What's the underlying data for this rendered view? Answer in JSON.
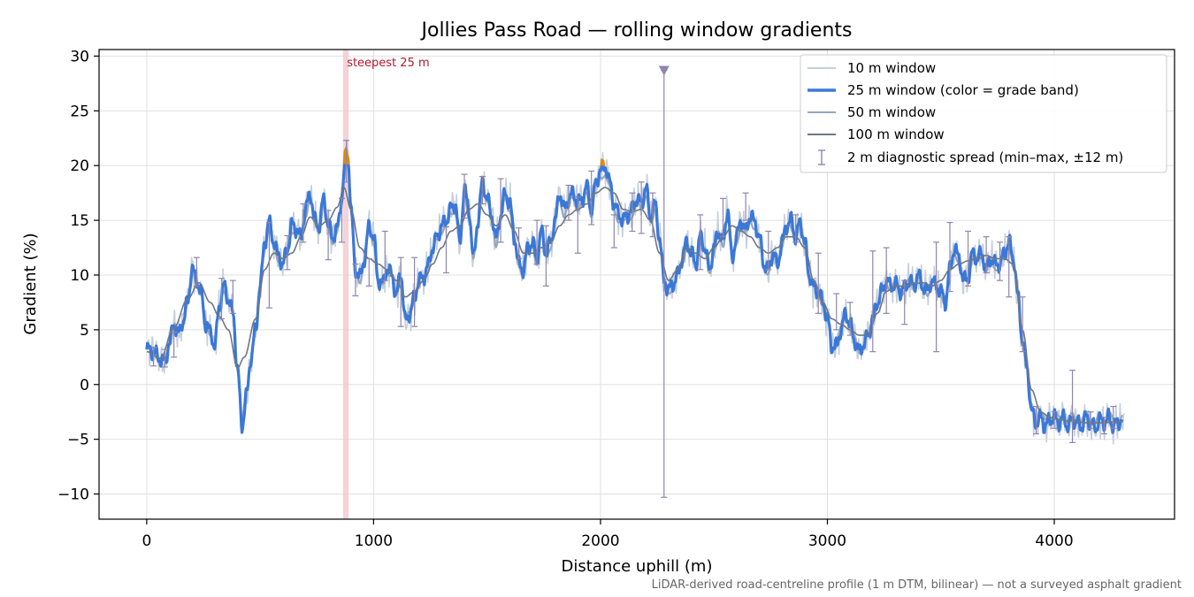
{
  "chart_data": {
    "type": "line",
    "title": "Jollies Pass Road — rolling window gradients",
    "xlabel": "Distance uphill (m)",
    "ylabel": "Gradient (%)",
    "xlim": [
      -210,
      4530
    ],
    "ylim": [
      -12.3,
      30.6
    ],
    "xticks": [
      0,
      1000,
      2000,
      3000,
      4000
    ],
    "yticks": [
      -10,
      -5,
      0,
      5,
      10,
      15,
      20,
      25,
      30
    ],
    "xtick_labels": [
      "0",
      "1000",
      "2000",
      "3000",
      "4000"
    ],
    "ytick_labels": [
      "−10",
      "−5",
      "0",
      "5",
      "10",
      "15",
      "20",
      "25",
      "30"
    ],
    "grid": true,
    "legend_position": "top-right",
    "footnote": "LiDAR-derived road-centreline profile (1 m DTM, bilinear) — not a surveyed asphalt gradient",
    "annotation": {
      "text": "steepest 25 m",
      "x_start": 865,
      "x_end": 890
    },
    "grade_band_threshold": 20,
    "colors": {
      "w10": "#c5cfdc",
      "w25": "#3a78d8",
      "w25_steep": "#e08a0a",
      "w50": "#97a7ba",
      "w100": "#6e7784",
      "spread": "#8f85ad",
      "highlight": "#f1c4cb",
      "grid": "#e0e0e0"
    },
    "series": [
      {
        "name": "10 m window",
        "role": "w10"
      },
      {
        "name": "25 m window (color = grade band)",
        "role": "w25"
      },
      {
        "name": "50 m window",
        "role": "w50"
      },
      {
        "name": "100 m window",
        "role": "w100"
      },
      {
        "name": "2 m diagnostic spread (min–max, ±12 m)",
        "role": "spread"
      }
    ],
    "profile_25m": [
      [
        0,
        3.2
      ],
      [
        30,
        3.0
      ],
      [
        60,
        2.3
      ],
      [
        80,
        2.0
      ],
      [
        100,
        3.8
      ],
      [
        120,
        5.5
      ],
      [
        140,
        4.6
      ],
      [
        160,
        5.8
      ],
      [
        180,
        7.5
      ],
      [
        200,
        10.5
      ],
      [
        220,
        9.6
      ],
      [
        240,
        8.3
      ],
      [
        260,
        5.5
      ],
      [
        280,
        4.8
      ],
      [
        300,
        3.5
      ],
      [
        320,
        7.2
      ],
      [
        340,
        9.0
      ],
      [
        360,
        7.8
      ],
      [
        380,
        6.5
      ],
      [
        400,
        1.5
      ],
      [
        420,
        -3.8
      ],
      [
        440,
        -1.0
      ],
      [
        460,
        2.5
      ],
      [
        480,
        5.0
      ],
      [
        500,
        9.0
      ],
      [
        520,
        13.0
      ],
      [
        540,
        14.8
      ],
      [
        560,
        13.0
      ],
      [
        580,
        11.8
      ],
      [
        600,
        11.0
      ],
      [
        620,
        12.4
      ],
      [
        640,
        14.6
      ],
      [
        660,
        14.2
      ],
      [
        680,
        13.4
      ],
      [
        700,
        16.0
      ],
      [
        720,
        17.5
      ],
      [
        740,
        15.0
      ],
      [
        760,
        14.5
      ],
      [
        780,
        17.0
      ],
      [
        800,
        14.5
      ],
      [
        820,
        13.5
      ],
      [
        840,
        14.2
      ],
      [
        860,
        17.0
      ],
      [
        870,
        19.5
      ],
      [
        880,
        21.3
      ],
      [
        890,
        20.3
      ],
      [
        900,
        16.0
      ],
      [
        920,
        10.5
      ],
      [
        940,
        9.8
      ],
      [
        960,
        11.5
      ],
      [
        980,
        14.5
      ],
      [
        1000,
        13.5
      ],
      [
        1020,
        9.5
      ],
      [
        1040,
        9.2
      ],
      [
        1060,
        10.6
      ],
      [
        1080,
        10.0
      ],
      [
        1100,
        8.2
      ],
      [
        1120,
        10.2
      ],
      [
        1140,
        5.8
      ],
      [
        1160,
        6.5
      ],
      [
        1180,
        8.0
      ],
      [
        1200,
        9.5
      ],
      [
        1220,
        9.8
      ],
      [
        1240,
        10.8
      ],
      [
        1260,
        12.5
      ],
      [
        1280,
        13.5
      ],
      [
        1300,
        14.5
      ],
      [
        1320,
        15.0
      ],
      [
        1340,
        16.0
      ],
      [
        1360,
        16.5
      ],
      [
        1380,
        13.0
      ],
      [
        1400,
        17.8
      ],
      [
        1420,
        16.0
      ],
      [
        1440,
        11.5
      ],
      [
        1460,
        15.0
      ],
      [
        1480,
        18.5
      ],
      [
        1500,
        17.0
      ],
      [
        1520,
        15.5
      ],
      [
        1540,
        13.2
      ],
      [
        1560,
        15.5
      ],
      [
        1580,
        17.5
      ],
      [
        1600,
        16.6
      ],
      [
        1620,
        13.5
      ],
      [
        1640,
        11.0
      ],
      [
        1660,
        10.5
      ],
      [
        1680,
        12.5
      ],
      [
        1700,
        12.9
      ],
      [
        1720,
        11.5
      ],
      [
        1740,
        14.0
      ],
      [
        1760,
        12.0
      ],
      [
        1780,
        13.0
      ],
      [
        1800,
        15.0
      ],
      [
        1820,
        17.5
      ],
      [
        1840,
        16.0
      ],
      [
        1860,
        17.0
      ],
      [
        1880,
        17.5
      ],
      [
        1900,
        16.6
      ],
      [
        1920,
        17.0
      ],
      [
        1940,
        18.0
      ],
      [
        1960,
        16.0
      ],
      [
        1980,
        18.5
      ],
      [
        2000,
        19.5
      ],
      [
        2020,
        20.0
      ],
      [
        2040,
        18.5
      ],
      [
        2060,
        16.5
      ],
      [
        2080,
        15.5
      ],
      [
        2100,
        15.0
      ],
      [
        2120,
        15.5
      ],
      [
        2140,
        16.0
      ],
      [
        2160,
        17.0
      ],
      [
        2180,
        16.5
      ],
      [
        2200,
        18.0
      ],
      [
        2220,
        15.3
      ],
      [
        2240,
        16.5
      ],
      [
        2260,
        13.5
      ],
      [
        2280,
        9.5
      ],
      [
        2300,
        8.6
      ],
      [
        2320,
        9.2
      ],
      [
        2340,
        10.0
      ],
      [
        2360,
        11.5
      ],
      [
        2380,
        13.0
      ],
      [
        2400,
        12.0
      ],
      [
        2420,
        11.0
      ],
      [
        2440,
        13.5
      ],
      [
        2460,
        12.5
      ],
      [
        2480,
        10.5
      ],
      [
        2500,
        12.5
      ],
      [
        2520,
        14.0
      ],
      [
        2540,
        13.0
      ],
      [
        2560,
        16.0
      ],
      [
        2580,
        11.5
      ],
      [
        2600,
        13.5
      ],
      [
        2620,
        15.0
      ],
      [
        2640,
        14.0
      ],
      [
        2660,
        15.5
      ],
      [
        2680,
        14.8
      ],
      [
        2700,
        13.5
      ],
      [
        2720,
        11.0
      ],
      [
        2740,
        10.5
      ],
      [
        2760,
        12.0
      ],
      [
        2780,
        11.0
      ],
      [
        2800,
        13.0
      ],
      [
        2820,
        14.5
      ],
      [
        2840,
        15.0
      ],
      [
        2860,
        13.5
      ],
      [
        2880,
        14.8
      ],
      [
        2900,
        13.0
      ],
      [
        2920,
        10.0
      ],
      [
        2940,
        8.8
      ],
      [
        2960,
        8.5
      ],
      [
        2980,
        7.5
      ],
      [
        3000,
        6.0
      ],
      [
        3020,
        3.5
      ],
      [
        3040,
        3.5
      ],
      [
        3060,
        5.0
      ],
      [
        3080,
        6.5
      ],
      [
        3100,
        5.5
      ],
      [
        3120,
        4.0
      ],
      [
        3140,
        3.0
      ],
      [
        3160,
        3.7
      ],
      [
        3180,
        4.5
      ],
      [
        3200,
        6.0
      ],
      [
        3220,
        7.5
      ],
      [
        3240,
        8.5
      ],
      [
        3260,
        9.5
      ],
      [
        3280,
        9.0
      ],
      [
        3300,
        9.2
      ],
      [
        3320,
        8.5
      ],
      [
        3340,
        8.8
      ],
      [
        3360,
        9.5
      ],
      [
        3380,
        9.0
      ],
      [
        3400,
        10.0
      ],
      [
        3420,
        9.0
      ],
      [
        3440,
        8.5
      ],
      [
        3460,
        9.5
      ],
      [
        3480,
        9.0
      ],
      [
        3500,
        8.5
      ],
      [
        3520,
        7.5
      ],
      [
        3540,
        10.5
      ],
      [
        3560,
        12.5
      ],
      [
        3580,
        11.5
      ],
      [
        3600,
        9.5
      ],
      [
        3620,
        9.8
      ],
      [
        3640,
        12.0
      ],
      [
        3660,
        11.5
      ],
      [
        3680,
        12.0
      ],
      [
        3700,
        10.5
      ],
      [
        3720,
        11.5
      ],
      [
        3740,
        11.0
      ],
      [
        3760,
        11.0
      ],
      [
        3780,
        12.0
      ],
      [
        3800,
        13.0
      ],
      [
        3820,
        11.5
      ],
      [
        3840,
        8.0
      ],
      [
        3860,
        4.0
      ],
      [
        3880,
        1.5
      ],
      [
        3900,
        -2.5
      ],
      [
        3920,
        -3.5
      ],
      [
        3940,
        -3.0
      ],
      [
        3960,
        -3.8
      ],
      [
        3980,
        -3.2
      ],
      [
        4000,
        -3.0
      ],
      [
        4020,
        -3.5
      ],
      [
        4040,
        -3.0
      ],
      [
        4060,
        -3.8
      ],
      [
        4080,
        -3.2
      ],
      [
        4100,
        -3.5
      ],
      [
        4120,
        -3.8
      ],
      [
        4140,
        -3.0
      ],
      [
        4160,
        -3.5
      ],
      [
        4180,
        -4.0
      ],
      [
        4200,
        -3.2
      ],
      [
        4220,
        -3.5
      ],
      [
        4240,
        -3.0
      ],
      [
        4260,
        -3.8
      ],
      [
        4280,
        -3.5
      ],
      [
        4300,
        -3.2
      ]
    ],
    "profile_100m": [
      [
        0,
        3.0
      ],
      [
        60,
        2.4
      ],
      [
        120,
        5.2
      ],
      [
        180,
        7.8
      ],
      [
        230,
        9.3
      ],
      [
        280,
        7.5
      ],
      [
        320,
        6.2
      ],
      [
        360,
        5.0
      ],
      [
        400,
        1.5
      ],
      [
        430,
        2.5
      ],
      [
        480,
        6.0
      ],
      [
        520,
        10.5
      ],
      [
        560,
        12.0
      ],
      [
        600,
        11.5
      ],
      [
        640,
        12.0
      ],
      [
        680,
        13.5
      ],
      [
        720,
        15.3
      ],
      [
        760,
        14.5
      ],
      [
        800,
        15.0
      ],
      [
        840,
        16.2
      ],
      [
        870,
        18.0
      ],
      [
        900,
        16.0
      ],
      [
        940,
        12.5
      ],
      [
        980,
        11.5
      ],
      [
        1020,
        11.0
      ],
      [
        1060,
        10.5
      ],
      [
        1100,
        9.5
      ],
      [
        1140,
        8.0
      ],
      [
        1180,
        8.5
      ],
      [
        1220,
        9.5
      ],
      [
        1260,
        11.0
      ],
      [
        1300,
        12.5
      ],
      [
        1340,
        14.0
      ],
      [
        1380,
        14.5
      ],
      [
        1420,
        16.0
      ],
      [
        1460,
        16.5
      ],
      [
        1500,
        15.5
      ],
      [
        1540,
        14.5
      ],
      [
        1580,
        15.5
      ],
      [
        1620,
        14.0
      ],
      [
        1660,
        12.0
      ],
      [
        1700,
        12.0
      ],
      [
        1740,
        12.5
      ],
      [
        1780,
        13.0
      ],
      [
        1820,
        14.5
      ],
      [
        1860,
        15.5
      ],
      [
        1900,
        16.0
      ],
      [
        1940,
        16.5
      ],
      [
        1980,
        17.5
      ],
      [
        2020,
        18.0
      ],
      [
        2060,
        17.5
      ],
      [
        2100,
        16.0
      ],
      [
        2140,
        15.8
      ],
      [
        2180,
        16.0
      ],
      [
        2220,
        15.0
      ],
      [
        2260,
        12.0
      ],
      [
        2300,
        9.5
      ],
      [
        2340,
        10.5
      ],
      [
        2380,
        12.5
      ],
      [
        2420,
        12.0
      ],
      [
        2460,
        11.5
      ],
      [
        2500,
        12.5
      ],
      [
        2540,
        13.5
      ],
      [
        2580,
        14.5
      ],
      [
        2620,
        14.0
      ],
      [
        2660,
        13.5
      ],
      [
        2700,
        12.5
      ],
      [
        2740,
        12.0
      ],
      [
        2780,
        12.5
      ],
      [
        2820,
        13.5
      ],
      [
        2860,
        13.5
      ],
      [
        2900,
        12.5
      ],
      [
        2940,
        9.5
      ],
      [
        2980,
        7.5
      ],
      [
        3020,
        6.0
      ],
      [
        3060,
        5.5
      ],
      [
        3100,
        5.0
      ],
      [
        3140,
        4.5
      ],
      [
        3180,
        4.5
      ],
      [
        3220,
        6.5
      ],
      [
        3260,
        8.5
      ],
      [
        3300,
        9.0
      ],
      [
        3340,
        9.0
      ],
      [
        3380,
        9.2
      ],
      [
        3420,
        9.3
      ],
      [
        3460,
        9.0
      ],
      [
        3500,
        9.5
      ],
      [
        3540,
        10.5
      ],
      [
        3580,
        11.0
      ],
      [
        3620,
        11.3
      ],
      [
        3660,
        11.5
      ],
      [
        3700,
        11.8
      ],
      [
        3740,
        11.5
      ],
      [
        3780,
        11.5
      ],
      [
        3820,
        11.0
      ],
      [
        3860,
        5.0
      ],
      [
        3900,
        -0.5
      ],
      [
        3940,
        -2.5
      ],
      [
        3980,
        -3.0
      ],
      [
        4020,
        -3.2
      ],
      [
        4060,
        -3.3
      ],
      [
        4100,
        -3.4
      ],
      [
        4140,
        -3.5
      ],
      [
        4180,
        -3.5
      ],
      [
        4220,
        -3.5
      ],
      [
        4260,
        -3.4
      ],
      [
        4300,
        -3.4
      ]
    ],
    "spread_bars": [
      [
        30,
        1.7,
        3.4
      ],
      [
        80,
        1.6,
        3.2
      ],
      [
        120,
        2.5,
        4.8
      ],
      [
        220,
        9.0,
        11.6
      ],
      [
        330,
        6.0,
        9.7
      ],
      [
        380,
        6.5,
        9.5
      ],
      [
        540,
        7.0,
        14.8
      ],
      [
        620,
        10.5,
        13.6
      ],
      [
        690,
        13.0,
        16.5
      ],
      [
        800,
        11.4,
        15.9
      ],
      [
        860,
        13.0,
        17.0
      ],
      [
        880,
        18.5,
        22.3
      ],
      [
        920,
        8.1,
        11.0
      ],
      [
        980,
        9.0,
        11.5
      ],
      [
        1050,
        9.5,
        14.0
      ],
      [
        1120,
        5.3,
        11.6
      ],
      [
        1180,
        5.3,
        11.6
      ],
      [
        1320,
        10.2,
        14.4
      ],
      [
        1400,
        15.2,
        19.2
      ],
      [
        1480,
        16.5,
        19.0
      ],
      [
        1560,
        13.0,
        18.8
      ],
      [
        1640,
        11.5,
        14.3
      ],
      [
        1720,
        11.0,
        15.0
      ],
      [
        1760,
        9.0,
        14.5
      ],
      [
        1860,
        15.0,
        18.2
      ],
      [
        1900,
        12.0,
        17.1
      ],
      [
        1960,
        14.6,
        19.5
      ],
      [
        2060,
        12.5,
        15.5
      ],
      [
        2140,
        14.0,
        17.5
      ],
      [
        2180,
        13.8,
        18.5
      ],
      [
        2230,
        13.5,
        17.5
      ],
      [
        2280,
        -10.3,
        28.7
      ],
      [
        2440,
        10.5,
        15.5
      ],
      [
        2540,
        13.5,
        17.0
      ],
      [
        2640,
        15.0,
        17.5
      ],
      [
        2740,
        10.5,
        14.0
      ],
      [
        2860,
        13.0,
        15.5
      ],
      [
        2960,
        6.5,
        12.0
      ],
      [
        3040,
        5.0,
        8.3
      ],
      [
        3100,
        4.5,
        7.5
      ],
      [
        3200,
        3.0,
        12.2
      ],
      [
        3260,
        6.5,
        12.5
      ],
      [
        3340,
        5.5,
        9.5
      ],
      [
        3480,
        3.0,
        13.0
      ],
      [
        3540,
        8.5,
        14.8
      ],
      [
        3620,
        9.0,
        14.0
      ],
      [
        3700,
        10.2,
        13.5
      ],
      [
        3760,
        9.5,
        13.0
      ],
      [
        3800,
        8.0,
        13.5
      ],
      [
        3860,
        3.0,
        8.0
      ],
      [
        3920,
        -4.5,
        -2.0
      ],
      [
        4000,
        -4.0,
        -2.5
      ],
      [
        4080,
        -5.3,
        1.3
      ],
      [
        4160,
        -4.0,
        -2.5
      ],
      [
        4220,
        -4.5,
        -3.0
      ],
      [
        4260,
        -4.0,
        -2.0
      ]
    ]
  }
}
